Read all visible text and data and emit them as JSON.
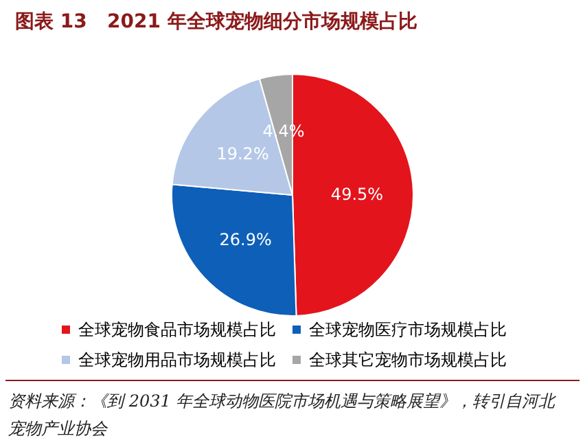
{
  "chart_data": {
    "type": "pie",
    "title": "图表 13   2021 年全球宠物细分市场规模占比",
    "categories": [
      "全球宠物食品市场规模占比",
      "全球宠物医疗市场规模占比",
      "全球宠物用品市场规模占比",
      "全球其它宠物市场规模占比"
    ],
    "values": [
      49.5,
      26.9,
      19.2,
      4.4
    ],
    "colors": [
      "#e3141c",
      "#0e5fb8",
      "#b4c7e7",
      "#a6a6a6"
    ],
    "value_labels": [
      "49.5%",
      "26.9%",
      "19.2%",
      "4.4%"
    ],
    "legend": "bottom",
    "annotations": [
      "资料来源：《到 2031 年全球动物医院市场机遇与策略展望》，转引自河北宠物产业协会"
    ]
  }
}
